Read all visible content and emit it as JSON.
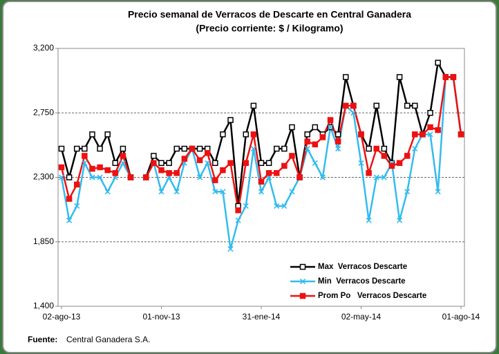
{
  "chart_data": {
    "type": "line",
    "title": "Precio semanal de Verracos de Descarte en Central Ganadera",
    "subtitle": "(Precio corriente: $ / Kilogramo)",
    "source_label": "Fuente:",
    "source": "Central Ganadera S.A.",
    "categories": [
      "02-ago-13",
      null,
      null,
      null,
      null,
      null,
      null,
      null,
      null,
      null,
      null,
      null,
      null,
      "01-nov-13",
      null,
      null,
      null,
      null,
      null,
      null,
      null,
      null,
      null,
      null,
      null,
      null,
      "31-ene-14",
      null,
      null,
      null,
      null,
      null,
      null,
      null,
      null,
      null,
      null,
      null,
      null,
      "02-may-14",
      null,
      null,
      null,
      null,
      null,
      null,
      null,
      null,
      null,
      null,
      null,
      null,
      "01-ago-14"
    ],
    "ylim": [
      1400,
      3200
    ],
    "yticks": [
      {
        "value": 1400,
        "label": "1,400"
      },
      {
        "value": 1850,
        "label": "1,850"
      },
      {
        "value": 2300,
        "label": "2,300"
      },
      {
        "value": 2750,
        "label": "2,750"
      },
      {
        "value": 3200,
        "label": "3,200"
      }
    ],
    "grid": true,
    "legend": "lower right",
    "series": [
      {
        "name": "Max  Verracos Descarte",
        "color": "#000000",
        "marker": "open-square",
        "values": [
          2500,
          2300,
          2500,
          2500,
          2600,
          2500,
          2600,
          2400,
          2500,
          2300,
          null,
          2300,
          2450,
          2400,
          2400,
          2500,
          2500,
          2500,
          2500,
          2500,
          2400,
          2600,
          2700,
          2100,
          2600,
          2800,
          2400,
          2400,
          2500,
          2500,
          2650,
          2300,
          2600,
          2650,
          2600,
          2650,
          2600,
          3000,
          2800,
          2600,
          2500,
          2800,
          2500,
          2400,
          3000,
          2800,
          2800,
          2600,
          2750,
          3100,
          3000,
          3000,
          2600
        ]
      },
      {
        "name": "Min  Verracos Descarte",
        "color": "#33bbee",
        "marker": "x",
        "values": [
          2300,
          2000,
          2100,
          2400,
          2300,
          2300,
          2200,
          2300,
          2400,
          2300,
          null,
          2300,
          2400,
          2200,
          2300,
          2200,
          2400,
          2500,
          2300,
          2400,
          2200,
          2200,
          1800,
          2000,
          2100,
          2500,
          2200,
          2300,
          2100,
          2100,
          2200,
          2300,
          2500,
          2400,
          2300,
          2650,
          2500,
          2800,
          2750,
          2400,
          2000,
          2300,
          2300,
          2400,
          2000,
          2200,
          2500,
          2600,
          2600,
          2200,
          3000,
          3000,
          2600
        ]
      },
      {
        "name": "Prom Po   Verracos Descarte",
        "color": "#ee1111",
        "marker": "square",
        "values": [
          2370,
          2150,
          2250,
          2450,
          2360,
          2370,
          2350,
          2330,
          2450,
          2300,
          null,
          2300,
          2400,
          2350,
          2330,
          2330,
          2430,
          2500,
          2420,
          2470,
          2280,
          2350,
          2400,
          2070,
          2400,
          2600,
          2270,
          2330,
          2330,
          2380,
          2450,
          2300,
          2550,
          2530,
          2580,
          2700,
          2550,
          2800,
          2800,
          2600,
          2330,
          2500,
          2450,
          2380,
          2400,
          2450,
          2600,
          2600,
          2650,
          2630,
          3000,
          3000,
          2600
        ]
      }
    ]
  }
}
